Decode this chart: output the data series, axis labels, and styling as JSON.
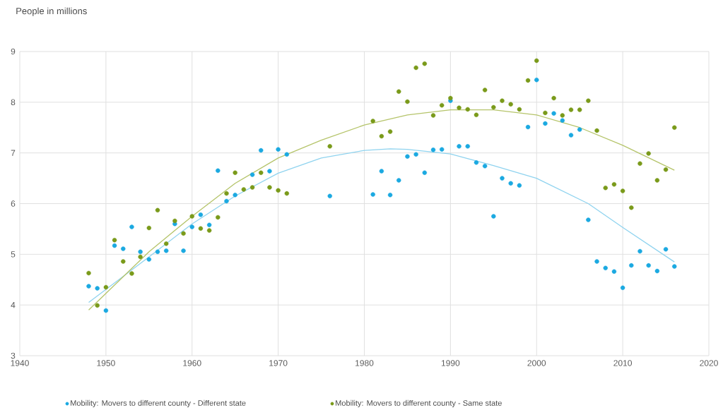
{
  "chart_data": {
    "type": "scatter",
    "ylabel": "People in millions",
    "xlim": [
      1940,
      2020
    ],
    "ylim": [
      3,
      9
    ],
    "xticks": [
      1940,
      1950,
      1960,
      1970,
      1980,
      1990,
      2000,
      2010,
      2020
    ],
    "yticks": [
      3,
      4,
      5,
      6,
      7,
      8,
      9
    ],
    "grid": true,
    "legend": "bottom",
    "marker": "circle",
    "series": [
      {
        "name": "Mobility: Movers to different county - Different state",
        "color": "#1ba9e1",
        "x": [
          1948,
          1949,
          1950,
          1951,
          1952,
          1953,
          1954,
          1955,
          1956,
          1957,
          1958,
          1959,
          1960,
          1961,
          1962,
          1963,
          1964,
          1965,
          1967,
          1968,
          1969,
          1970,
          1971,
          1976,
          1981,
          1982,
          1983,
          1984,
          1985,
          1986,
          1987,
          1988,
          1989,
          1990,
          1991,
          1992,
          1993,
          1994,
          1995,
          1996,
          1997,
          1998,
          1999,
          2000,
          2001,
          2002,
          2003,
          2004,
          2005,
          2006,
          2007,
          2008,
          2009,
          2010,
          2011,
          2012,
          2013,
          2014,
          2015,
          2016
        ],
        "values": [
          4.37,
          4.33,
          3.89,
          5.17,
          5.11,
          5.54,
          5.05,
          4.9,
          5.05,
          5.07,
          5.6,
          5.07,
          5.54,
          5.78,
          5.58,
          6.65,
          6.05,
          6.17,
          6.57,
          7.05,
          6.64,
          7.07,
          6.97,
          6.15,
          6.18,
          6.64,
          6.17,
          6.46,
          6.93,
          6.97,
          6.61,
          7.06,
          7.07,
          8.03,
          7.13,
          7.13,
          6.81,
          6.74,
          5.75,
          6.5,
          6.4,
          6.36,
          7.51,
          8.44,
          7.58,
          7.78,
          7.64,
          7.35,
          7.46,
          5.68,
          4.86,
          4.73,
          4.66,
          4.34,
          4.78,
          5.06,
          4.78,
          4.67,
          5.1,
          4.76
        ]
      },
      {
        "name": "Mobility: Movers to different county - Same state",
        "color": "#7a9a1a",
        "x": [
          1948,
          1949,
          1950,
          1951,
          1952,
          1953,
          1954,
          1955,
          1956,
          1957,
          1958,
          1959,
          1960,
          1961,
          1962,
          1963,
          1964,
          1965,
          1966,
          1967,
          1968,
          1969,
          1970,
          1971,
          1976,
          1981,
          1982,
          1983,
          1984,
          1985,
          1986,
          1987,
          1988,
          1989,
          1990,
          1991,
          1992,
          1993,
          1994,
          1995,
          1996,
          1997,
          1998,
          1999,
          2000,
          2001,
          2002,
          2003,
          2004,
          2005,
          2006,
          2007,
          2008,
          2009,
          2010,
          2011,
          2012,
          2013,
          2014,
          2015,
          2016
        ],
        "values": [
          4.63,
          3.99,
          4.35,
          5.28,
          4.86,
          4.62,
          4.95,
          5.52,
          5.87,
          5.21,
          5.66,
          5.41,
          5.75,
          5.51,
          5.47,
          5.73,
          6.2,
          6.61,
          6.28,
          6.32,
          6.61,
          6.32,
          6.26,
          6.2,
          7.13,
          7.63,
          7.33,
          7.42,
          8.21,
          8.01,
          8.68,
          8.76,
          7.74,
          7.94,
          8.08,
          7.89,
          7.86,
          7.75,
          8.24,
          7.9,
          8.03,
          7.96,
          7.86,
          8.43,
          8.82,
          7.79,
          8.08,
          7.74,
          7.85,
          7.85,
          8.03,
          7.44,
          6.31,
          6.38,
          6.25,
          5.92,
          6.79,
          6.99,
          6.46,
          6.67,
          7.5
        ]
      },
      {
        "type": "line",
        "marker": "none",
        "color": "#8fd3ef",
        "x": [
          1948,
          1955,
          1960,
          1965,
          1970,
          1975,
          1980,
          1983,
          1985,
          1990,
          1995,
          2000,
          2006,
          2010,
          2016
        ],
        "values": [
          4.05,
          4.95,
          5.6,
          6.15,
          6.6,
          6.9,
          7.05,
          7.08,
          7.07,
          6.98,
          6.75,
          6.5,
          6.0,
          5.53,
          4.85
        ]
      },
      {
        "type": "line",
        "marker": "none",
        "color": "#b5c46a",
        "x": [
          1948,
          1955,
          1960,
          1965,
          1970,
          1975,
          1980,
          1985,
          1990,
          1995,
          2000,
          2005,
          2010,
          2016
        ],
        "values": [
          3.9,
          5.05,
          5.75,
          6.4,
          6.9,
          7.25,
          7.55,
          7.75,
          7.85,
          7.85,
          7.75,
          7.5,
          7.15,
          6.66
        ]
      }
    ]
  }
}
